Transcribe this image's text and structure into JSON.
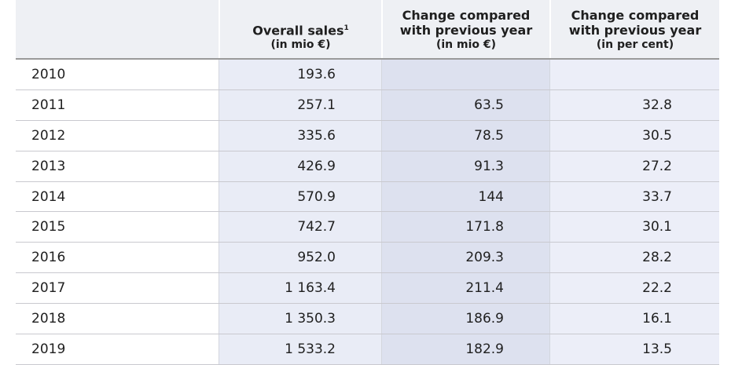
{
  "table": {
    "headers": {
      "year": "",
      "sales_line1": "Overall sales",
      "sales_sup": "1",
      "sales_line2": "(in mio €)",
      "abs_line1": "Change compared",
      "abs_line2": "with previous year",
      "abs_line3": "(in mio €)",
      "pct_line1": "Change compared",
      "pct_line2": "with previous year",
      "pct_line3": "(in per cent)"
    },
    "rows": [
      {
        "year": "2010",
        "sales": "193.6",
        "change_abs": "",
        "change_pct": ""
      },
      {
        "year": "2011",
        "sales": "257.1",
        "change_abs": "63.5",
        "change_pct": "32.8"
      },
      {
        "year": "2012",
        "sales": "335.6",
        "change_abs": "78.5",
        "change_pct": "30.5"
      },
      {
        "year": "2013",
        "sales": "426.9",
        "change_abs": "91.3",
        "change_pct": "27.2"
      },
      {
        "year": "2014",
        "sales": "570.9",
        "change_abs": "144",
        "change_pct": "33.7"
      },
      {
        "year": "2015",
        "sales": "742.7",
        "change_abs": "171.8",
        "change_pct": "30.1"
      },
      {
        "year": "2016",
        "sales": "952.0",
        "change_abs": "209.3",
        "change_pct": "28.2"
      },
      {
        "year": "2017",
        "sales": "1 163.4",
        "change_abs": "211.4",
        "change_pct": "22.2"
      },
      {
        "year": "2018",
        "sales": "1 350.3",
        "change_abs": "186.9",
        "change_pct": "16.1"
      },
      {
        "year": "2019",
        "sales": "1 533.2",
        "change_abs": "182.9",
        "change_pct": "13.5"
      }
    ]
  }
}
